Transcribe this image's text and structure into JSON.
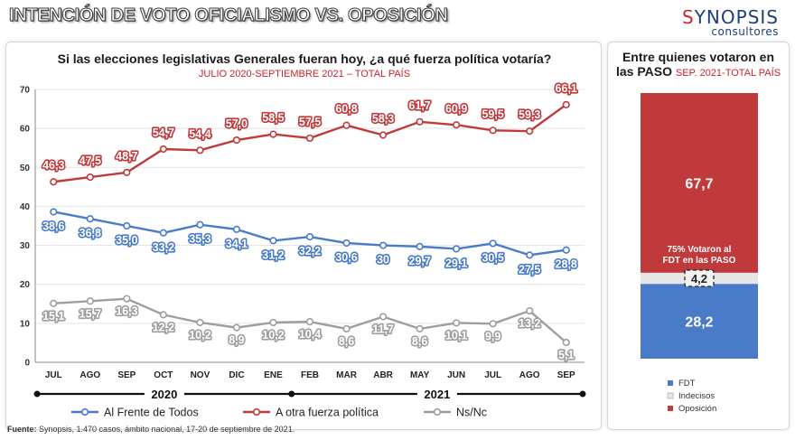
{
  "header": {
    "title": "INTENCIÓN DE VOTO OFICIALISMO VS. OPOSICIÓN",
    "brand_name": "SYNOPSIS",
    "brand_sub": "consultores"
  },
  "colors": {
    "red": "#c0393b",
    "blue": "#4a7bc8",
    "gray": "#9e9e9e",
    "indecisos": "#e6e6e6"
  },
  "main": {
    "question": "Si las elecciones legislativas Generales fueran hoy, ¿a qué fuerza política votaría?",
    "subtitle": "JULIO 2020-SEPTIEMBRE 2021 – TOTAL PAÍS"
  },
  "side": {
    "title_line1": "Entre quienes votaron en",
    "title_line2": "las PASO",
    "title_red": "SEP. 2021-TOTAL PAÍS",
    "annotation_line1": "75% Votaron al",
    "annotation_line2": "FDT en las PASO"
  },
  "footer": {
    "label": "Fuente:",
    "text": "Synopsis, 1.470 casos, ámbito nacional, 17-20 de septiembre de 2021."
  },
  "chart_data": [
    {
      "type": "line",
      "x": [
        "JUL",
        "AGO",
        "SEP",
        "OCT",
        "NOV",
        "DIC",
        "ENE",
        "FEB",
        "MAR",
        "ABR",
        "MAY",
        "JUN",
        "JUL",
        "AGO",
        "SEP"
      ],
      "years": [
        {
          "label": "2020",
          "from": 0,
          "to": 6
        },
        {
          "label": "2021",
          "from": 6,
          "to": 14
        }
      ],
      "ylim": [
        0,
        70
      ],
      "yticks": [
        0,
        10,
        20,
        30,
        40,
        50,
        60,
        70
      ],
      "grid": true,
      "legend_position": "bottom",
      "series": [
        {
          "name": "Al Frente de Todos",
          "color": "#4a7bc8",
          "values": [
            38.6,
            36.8,
            35.0,
            33.2,
            35.3,
            34.1,
            31.2,
            32.2,
            30.6,
            30,
            29.7,
            29.1,
            30.5,
            27.5,
            28.8
          ],
          "labels": [
            "38,6",
            "36,8",
            "35,0",
            "33,2",
            "35,3",
            "34,1",
            "31,2",
            "32,2",
            "30,6",
            "30",
            "29,7",
            "29,1",
            "30,5",
            "27,5",
            "28,8"
          ]
        },
        {
          "name": "A otra fuerza política",
          "color": "#c0393b",
          "values": [
            46.3,
            47.5,
            48.7,
            54.7,
            54.4,
            57.0,
            58.5,
            57.5,
            60.8,
            58.3,
            61.7,
            60.9,
            59.5,
            59.3,
            66.1
          ],
          "labels": [
            "46,3",
            "47,5",
            "48,7",
            "54,7",
            "54,4",
            "57,0",
            "58,5",
            "57,5",
            "60,8",
            "58,3",
            "61,7",
            "60,9",
            "59,5",
            "59,3",
            "66,1"
          ]
        },
        {
          "name": "Ns/Nc",
          "color": "#9e9e9e",
          "values": [
            15.1,
            15.7,
            16.3,
            12.2,
            10.2,
            8.9,
            10.2,
            10.4,
            8.6,
            11.7,
            8.6,
            10.1,
            9.9,
            13.2,
            5.1
          ],
          "labels": [
            "15,1",
            "15,7",
            "16,3",
            "12,2",
            "10,2",
            "8,9",
            "10,2",
            "10,4",
            "8,6",
            "11,7",
            "8,6",
            "10,1",
            "9,9",
            "13,2",
            "5,1"
          ]
        }
      ]
    },
    {
      "type": "bar",
      "stacked": true,
      "segments": [
        {
          "name": "FDT",
          "value": 28.2,
          "label": "28,2",
          "color": "#4a7bc8"
        },
        {
          "name": "Indecisos",
          "value": 4.2,
          "label": "4,2",
          "color": "#e6e6e6"
        },
        {
          "name": "Oposición",
          "value": 67.7,
          "label": "67,7",
          "color": "#c0393b"
        }
      ],
      "legend": [
        "FDT",
        "Indecisos",
        "Oposición"
      ]
    }
  ]
}
